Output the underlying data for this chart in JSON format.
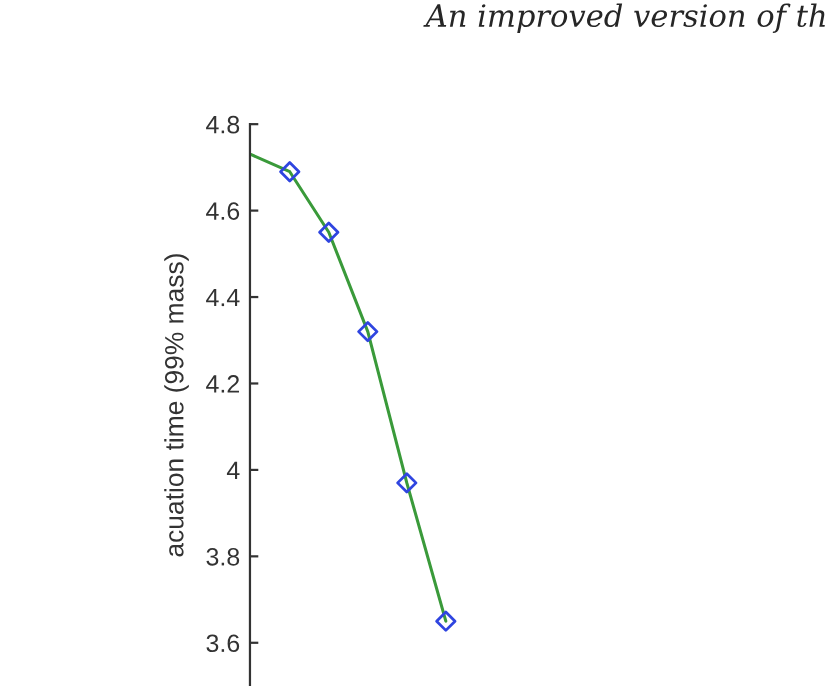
{
  "chart_data": {
    "type": "line",
    "ylabel": "acuation time (99% mass)",
    "annotations": [
      "An improved version of th"
    ],
    "categories": [
      null,
      null,
      null,
      null,
      null,
      null
    ],
    "series": [
      {
        "color": "#3a9a3a",
        "values": [
          4.73,
          4.69,
          4.55,
          4.32,
          3.97,
          3.65
        ]
      },
      {
        "type": "scatter",
        "color": "#2f45e0",
        "marker": "diamond",
        "values": [
          null,
          4.69,
          4.55,
          4.32,
          3.97,
          3.65
        ]
      }
    ],
    "ylim": [
      3.5,
      4.8
    ],
    "yticks": [
      3.6,
      3.8,
      4,
      4.2,
      4.4,
      4.6,
      4.8
    ],
    "tick_labels": "y",
    "grid": false
  }
}
